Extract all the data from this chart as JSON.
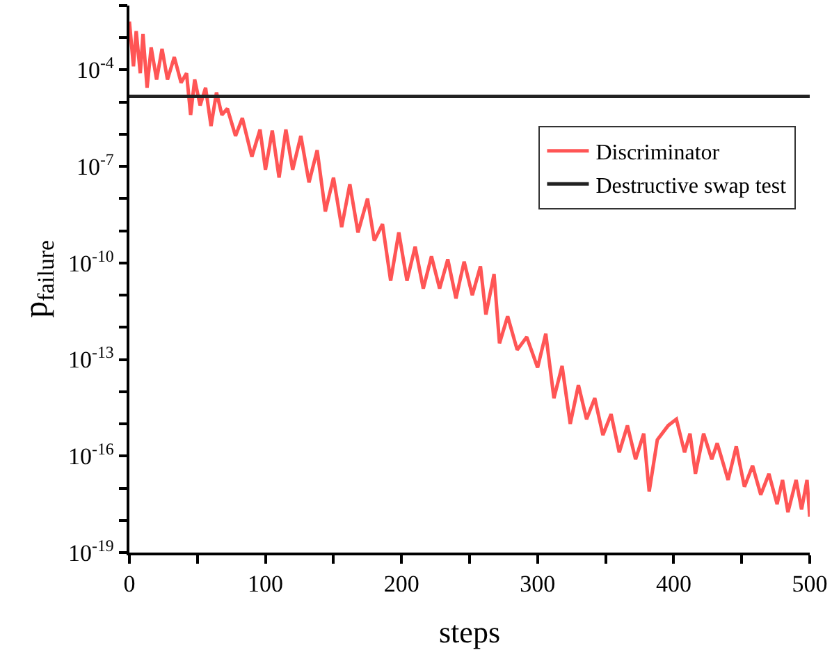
{
  "chart_data": {
    "type": "line",
    "xlabel": "steps",
    "ylabel": "p$_{failure}$",
    "log": true,
    "grid": false,
    "legend": "top right",
    "line_style": "solid",
    "marker": "none",
    "xlim": [
      0,
      500
    ],
    "xticks": [
      0,
      {
        "value": 50,
        "label": null
      },
      100,
      {
        "value": 150,
        "label": null
      },
      200,
      {
        "value": 250,
        "label": null
      },
      300,
      {
        "value": 350,
        "label": null
      },
      400,
      {
        "value": 450,
        "label": null
      },
      500
    ],
    "ylim": [
      1e-19,
      0.01
    ],
    "yticks": [
      {
        "value": 1e-19,
        "label": "10$^{-19}$"
      },
      {
        "value": 1e-18,
        "label": null
      },
      {
        "value": 1e-17,
        "label": null
      },
      {
        "value": 1e-16,
        "label": "10$^{-16}$"
      },
      {
        "value": 1e-15,
        "label": null
      },
      {
        "value": 1e-14,
        "label": null
      },
      {
        "value": 1e-13,
        "label": "10$^{-13}$"
      },
      {
        "value": 1e-12,
        "label": null
      },
      {
        "value": 1e-11,
        "label": null
      },
      {
        "value": 1e-10,
        "label": "10$^{-10}$"
      },
      {
        "value": 1e-09,
        "label": null
      },
      {
        "value": 1e-08,
        "label": null
      },
      {
        "value": 1e-07,
        "label": "10$^{-7}$"
      },
      {
        "value": 1e-06,
        "label": null
      },
      {
        "value": 1e-05,
        "label": null
      },
      {
        "value": 0.0001,
        "label": "10$^{-4}$"
      },
      {
        "value": 0.001,
        "label": null
      },
      {
        "value": 0.01,
        "label": null
      }
    ],
    "series": [
      {
        "name": "Discriminator",
        "color": "#ff5555",
        "x": [
          0,
          3,
          5,
          8,
          10,
          13,
          16,
          20,
          24,
          28,
          33,
          38,
          42,
          45,
          48,
          52,
          56,
          60,
          64,
          68,
          72,
          78,
          83,
          90,
          96,
          100,
          105,
          110,
          115,
          120,
          126,
          132,
          138,
          144,
          150,
          156,
          162,
          168,
          175,
          180,
          186,
          192,
          198,
          204,
          210,
          216,
          222,
          228,
          234,
          240,
          246,
          252,
          258,
          262,
          268,
          272,
          278,
          285,
          292,
          300,
          306,
          312,
          318,
          324,
          330,
          336,
          342,
          348,
          354,
          360,
          366,
          372,
          378,
          382,
          388,
          396,
          402,
          408,
          412,
          416,
          422,
          428,
          432,
          440,
          446,
          452,
          458,
          464,
          470,
          476,
          480,
          484,
          490,
          494,
          498,
          500
        ],
        "values": [
          0.0032,
          0.00013,
          0.0016,
          7.9e-05,
          0.0013,
          2.8e-05,
          0.0005,
          5e-05,
          0.00045,
          5e-05,
          0.00025,
          4e-05,
          7.9e-05,
          4e-06,
          5e-05,
          7.9e-06,
          2.8e-05,
          1.8e-06,
          2e-05,
          4e-06,
          6.3e-06,
          8.9e-07,
          3.2e-06,
          2e-07,
          1.4e-06,
          7.9e-08,
          1.3e-06,
          4.5e-08,
          1.4e-06,
          7.9e-08,
          8.9e-07,
          3.2e-08,
          3.2e-07,
          4e-09,
          4.5e-08,
          1.3e-09,
          2.8e-08,
          8.9e-10,
          1e-08,
          5e-10,
          1.6e-09,
          2.8e-11,
          8.9e-10,
          2.8e-11,
          3.2e-10,
          1.6e-11,
          1.6e-10,
          1.6e-11,
          1.3e-10,
          7.9e-12,
          1.1e-10,
          1e-11,
          7.9e-11,
          2.5e-12,
          4.5e-11,
          3.2e-13,
          2.2e-12,
          2e-13,
          5e-13,
          5.6e-14,
          6.3e-13,
          6.3e-15,
          6.3e-14,
          1e-15,
          1.6e-14,
          1.4e-15,
          6.3e-15,
          4.5e-16,
          2e-15,
          1.3e-16,
          8.9e-16,
          7.9e-17,
          5e-16,
          7.9e-18,
          3.2e-16,
          8.9e-16,
          1.4e-15,
          1.3e-16,
          5e-16,
          2.8e-17,
          5e-16,
          7.9e-17,
          2.5e-16,
          1.8e-17,
          2e-16,
          1.1e-17,
          5e-17,
          6.3e-18,
          2.8e-17,
          3.2e-18,
          1.8e-17,
          1.8e-18,
          1.8e-17,
          2.2e-18,
          1.8e-17,
          1.3e-18
        ]
      },
      {
        "name": "Destructive swap test",
        "color": "#222222",
        "x": [
          0,
          500
        ],
        "values": [
          1.5e-05,
          1.5e-05
        ]
      }
    ]
  }
}
